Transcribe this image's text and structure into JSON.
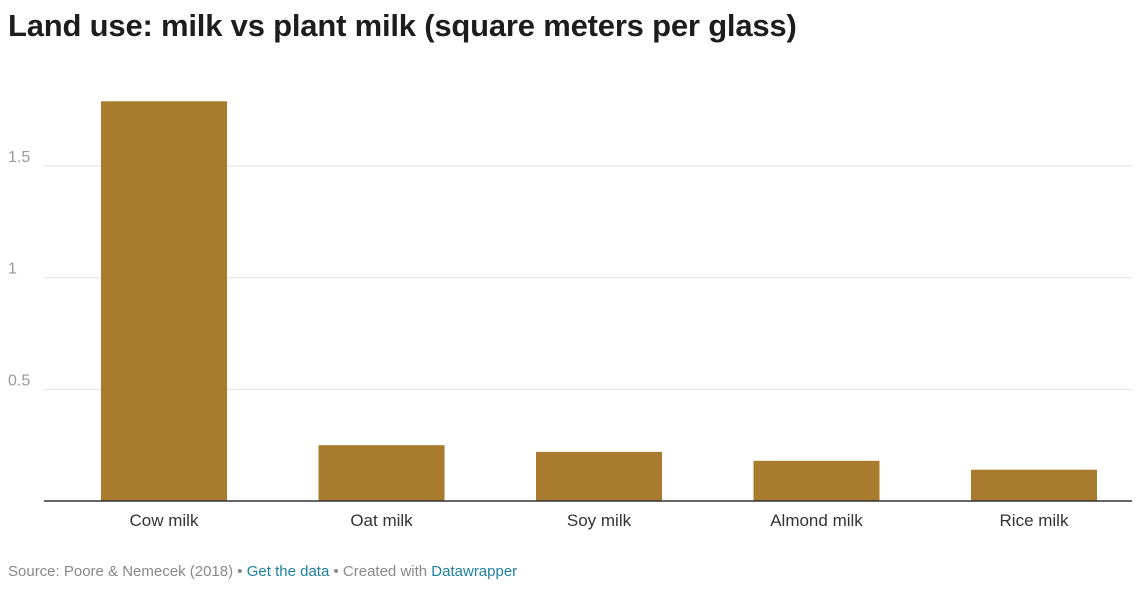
{
  "title": "Land use: milk vs plant milk (square meters per glass)",
  "chart_data": {
    "type": "bar",
    "categories": [
      "Cow milk",
      "Oat milk",
      "Soy milk",
      "Almond milk",
      "Rice milk"
    ],
    "values": [
      1.79,
      0.25,
      0.22,
      0.18,
      0.14
    ],
    "ylim": [
      0,
      1.8
    ],
    "yticks": [
      0.5,
      1,
      1.5
    ],
    "ytick_labels": [
      "0.5",
      "1",
      "1.5"
    ],
    "grid": true,
    "bar_color": "#a87b2e"
  },
  "footer": {
    "source": "Source: Poore & Nemecek (2018)",
    "separator": "•",
    "get_data": "Get the data",
    "created_with": "Created with",
    "datawrapper": "Datawrapper"
  }
}
